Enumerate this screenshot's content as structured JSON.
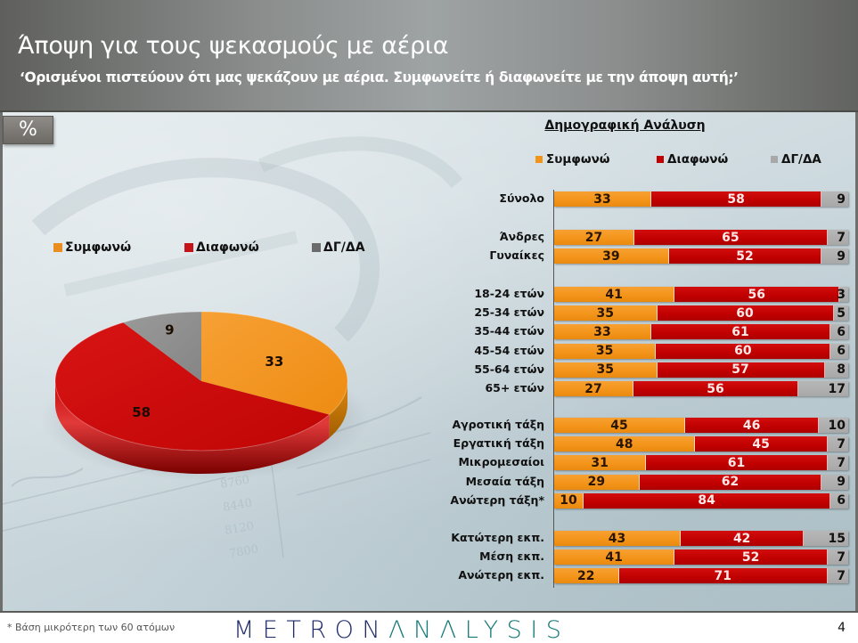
{
  "header": {
    "title": "Άποψη για τους ψεκασμούς με αέρια",
    "subtitle": "‘Ορισμένοι πιστεύουν ότι μας ψεκάζουν με αέρια. Συμφωνείτε ή διαφωνείτε με την άποψη αυτή;’"
  },
  "unit_badge": "%",
  "colors": {
    "agree": "#f39419",
    "disagree": "#c00000",
    "dkna": "#a8a8a8"
  },
  "chart_data": [
    {
      "type": "pie",
      "title": "",
      "legend": [
        "Συμφωνώ",
        "Διαφωνώ",
        "ΔΓ/ΔΑ"
      ],
      "legend_position": "top",
      "slices": [
        {
          "label": "Συμφωνώ",
          "value": 33
        },
        {
          "label": "Διαφωνώ",
          "value": 58
        },
        {
          "label": "ΔΓ/ΔΑ",
          "value": 9
        }
      ]
    },
    {
      "type": "bar",
      "orientation": "horizontal",
      "stacked": true,
      "title": "Δημογραφική Ανάλυση",
      "legend": [
        "Συμφωνώ",
        "Διαφωνώ",
        "ΔΓ/ΔΑ"
      ],
      "legend_position": "top",
      "xlim": [
        0,
        100
      ],
      "grid": false,
      "groups": [
        {
          "rows": [
            {
              "label": "Σύνολο",
              "values": [
                33,
                58,
                9
              ]
            }
          ]
        },
        {
          "rows": [
            {
              "label": "Άνδρες",
              "values": [
                27,
                65,
                7
              ]
            },
            {
              "label": "Γυναίκες",
              "values": [
                39,
                52,
                9
              ]
            }
          ]
        },
        {
          "rows": [
            {
              "label": "18-24 ετών",
              "values": [
                41,
                56,
                3
              ]
            },
            {
              "label": "25-34 ετών",
              "values": [
                35,
                60,
                5
              ]
            },
            {
              "label": "35-44 ετών",
              "values": [
                33,
                61,
                6
              ]
            },
            {
              "label": "45-54 ετών",
              "values": [
                35,
                60,
                6
              ]
            },
            {
              "label": "55-64 ετών",
              "values": [
                35,
                57,
                8
              ]
            },
            {
              "label": "65+ ετών",
              "values": [
                27,
                56,
                17
              ]
            }
          ]
        },
        {
          "rows": [
            {
              "label": "Αγροτική τάξη",
              "values": [
                45,
                46,
                10
              ]
            },
            {
              "label": "Εργατική τάξη",
              "values": [
                48,
                45,
                7
              ]
            },
            {
              "label": "Μικρομεσαίοι",
              "values": [
                31,
                61,
                7
              ]
            },
            {
              "label": "Μεσαία τάξη",
              "values": [
                29,
                62,
                9
              ]
            },
            {
              "label": "Ανώτερη τάξη*",
              "values": [
                10,
                84,
                6
              ]
            }
          ]
        },
        {
          "rows": [
            {
              "label": "Κατώτερη εκπ.",
              "values": [
                43,
                42,
                15
              ]
            },
            {
              "label": "Μέση εκπ.",
              "values": [
                41,
                52,
                7
              ]
            },
            {
              "label": "Ανώτερη εκπ.",
              "values": [
                22,
                71,
                7
              ]
            }
          ]
        }
      ]
    }
  ],
  "footer": {
    "footnote": "* Βάση μικρότερη των 60 ατόμων",
    "logo_part1": "METRON",
    "logo_part2": "ΛNΛLYSIS",
    "page_number": "4"
  }
}
